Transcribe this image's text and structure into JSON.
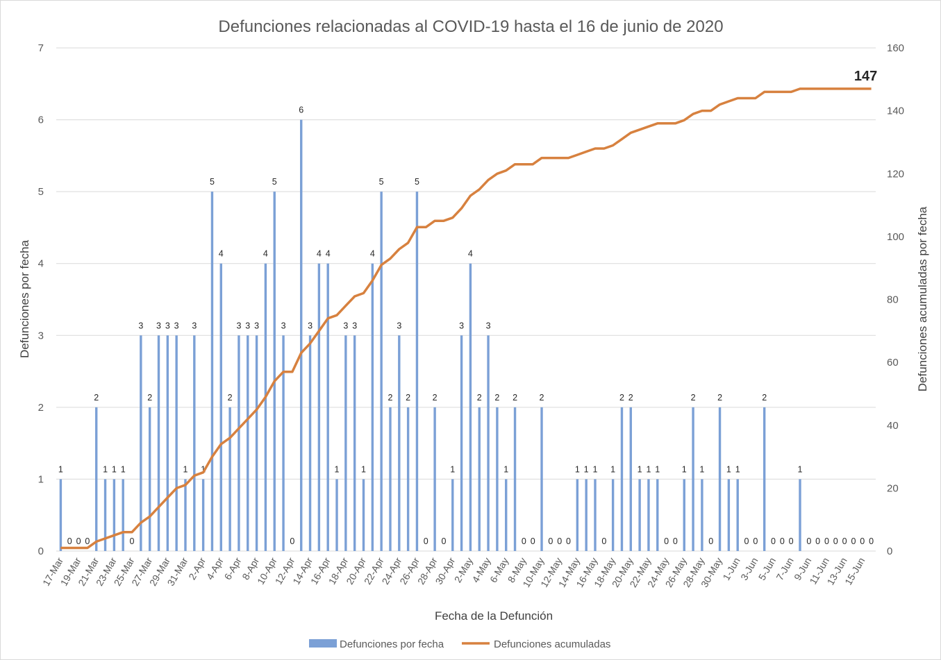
{
  "chart_data": {
    "type": "bar",
    "title": "Defunciones relacionadas al COVID-19 hasta el 16 de junio de 2020",
    "xlabel": "Fecha de la Defunción",
    "ylabel": "Defunciones por fecha",
    "y2label": "Defunciones acumuladas por fecha",
    "ylim": [
      0,
      7
    ],
    "y2lim": [
      0,
      160
    ],
    "yticks": [
      0,
      1,
      2,
      3,
      4,
      5,
      6,
      7
    ],
    "y2ticks": [
      0,
      20,
      40,
      60,
      80,
      100,
      120,
      140,
      160
    ],
    "grid": true,
    "legend_position": "bottom",
    "x_tick_labels": [
      "17-Mar",
      "19-Mar",
      "21-Mar",
      "23-Mar",
      "25-Mar",
      "27-Mar",
      "29-Mar",
      "31-Mar",
      "2-Apr",
      "4-Apr",
      "6-Apr",
      "8-Apr",
      "10-Apr",
      "12-Apr",
      "14-Apr",
      "16-Apr",
      "18-Apr",
      "20-Apr",
      "22-Apr",
      "24-Apr",
      "26-Apr",
      "28-Apr",
      "30-Apr",
      "2-May",
      "4-May",
      "6-May",
      "8-May",
      "10-May",
      "12-May",
      "14-May",
      "16-May",
      "18-May",
      "20-May",
      "22-May",
      "24-May",
      "26-May",
      "28-May",
      "30-May",
      "1-Jun",
      "3-Jun",
      "5-Jun",
      "7-Jun",
      "9-Jun",
      "11-Jun",
      "13-Jun",
      "15-Jun"
    ],
    "series": [
      {
        "name": "Defunciones por fecha",
        "type": "bar",
        "axis": "left",
        "color": "#7ba0d6",
        "values": [
          1,
          0,
          0,
          0,
          2,
          1,
          1,
          1,
          0,
          3,
          2,
          3,
          3,
          3,
          1,
          3,
          1,
          5,
          4,
          2,
          3,
          3,
          3,
          4,
          5,
          3,
          0,
          6,
          3,
          4,
          4,
          1,
          3,
          3,
          1,
          4,
          5,
          2,
          3,
          2,
          5,
          0,
          2,
          0,
          1,
          3,
          4,
          2,
          3,
          2,
          1,
          2,
          0,
          0,
          2,
          0,
          0,
          0,
          1,
          1,
          1,
          0,
          1,
          2,
          2,
          1,
          1,
          1,
          0,
          0,
          1,
          2,
          1,
          0,
          2,
          1,
          1,
          0,
          0,
          2,
          0,
          0,
          0,
          1,
          0,
          0,
          0,
          0,
          0,
          0,
          0,
          0
        ]
      },
      {
        "name": "Defunciones acumuladas",
        "type": "line",
        "axis": "right",
        "color": "#d7813f",
        "values": [
          1,
          1,
          1,
          1,
          3,
          4,
          5,
          6,
          6,
          9,
          11,
          14,
          17,
          20,
          21,
          24,
          25,
          30,
          34,
          36,
          39,
          42,
          45,
          49,
          54,
          57,
          57,
          63,
          66,
          70,
          74,
          75,
          78,
          81,
          82,
          86,
          91,
          93,
          96,
          98,
          103,
          103,
          105,
          105,
          106,
          109,
          113,
          115,
          118,
          120,
          121,
          123,
          123,
          123,
          125,
          125,
          125,
          125,
          126,
          127,
          128,
          128,
          129,
          131,
          133,
          134,
          135,
          136,
          136,
          136,
          137,
          139,
          140,
          140,
          142,
          143,
          144,
          144,
          144,
          146,
          146,
          146,
          146,
          147,
          147,
          147,
          147,
          147,
          147,
          147,
          147,
          147
        ]
      }
    ],
    "final_label": "147"
  }
}
